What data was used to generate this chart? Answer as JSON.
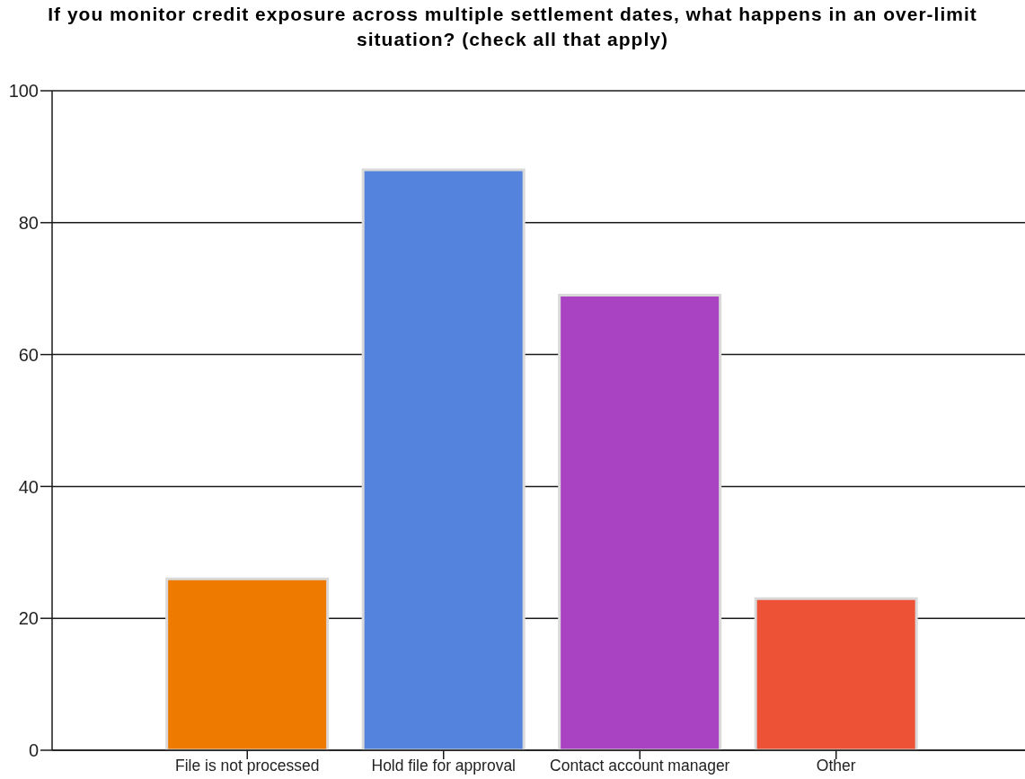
{
  "chart_data": {
    "type": "bar",
    "title": "If you monitor credit exposure across multiple settlement dates, what happens in an over-limit situation? (check all that apply)",
    "categories": [
      "File is not processed",
      "Hold file for approval",
      "Contact account manager",
      "Other"
    ],
    "values": [
      26,
      88,
      69,
      23
    ],
    "colors": [
      "#ee7a00",
      "#5383dd",
      "#a943c2",
      "#ee5236"
    ],
    "ylim": [
      0,
      100
    ],
    "yticks": [
      0,
      20,
      40,
      60,
      80,
      100
    ],
    "grid": "y"
  }
}
